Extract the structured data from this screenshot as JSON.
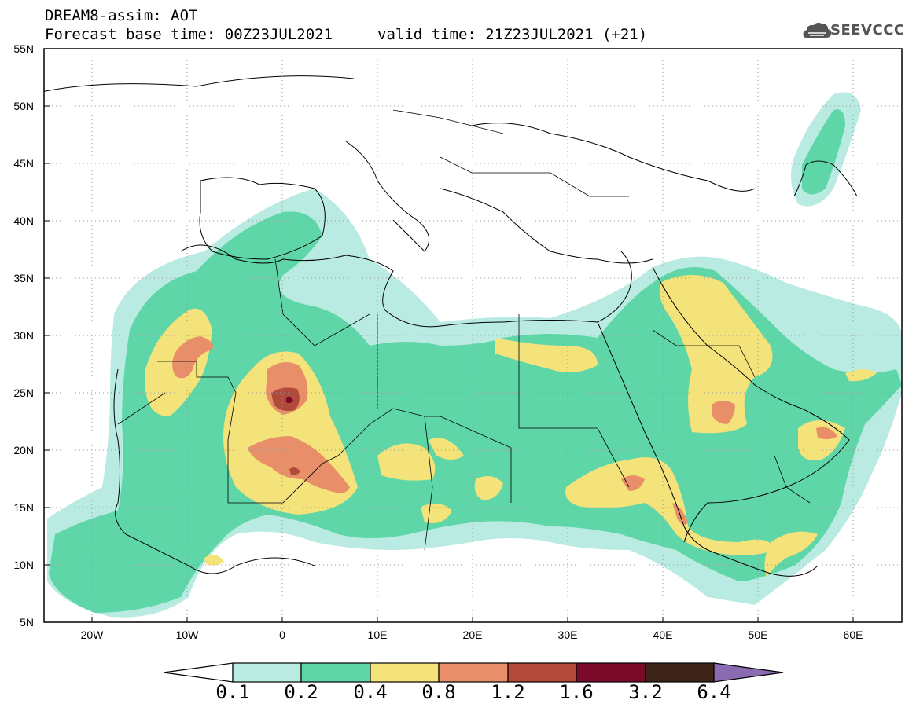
{
  "title": {
    "model": "DREAM8-assim: AOT",
    "base_time": "Forecast base time: 00Z23JUL2021",
    "valid_time": "valid time: 21Z23JUL2021 (+21)"
  },
  "logo": {
    "text": "SEEVCCC",
    "icon": "cloud-icon"
  },
  "map": {
    "lat_labels": [
      "55N",
      "50N",
      "45N",
      "40N",
      "35N",
      "30N",
      "25N",
      "20N",
      "15N",
      "10N",
      "5N"
    ],
    "lon_labels": [
      "20W",
      "10W",
      "0",
      "10E",
      "20E",
      "30E",
      "40E",
      "50E",
      "60E"
    ],
    "lon_range": [
      -25,
      65
    ],
    "lat_range": [
      5,
      55
    ]
  },
  "colorbar": {
    "labels": [
      "0.1",
      "0.2",
      "0.4",
      "0.8",
      "1.2",
      "1.6",
      "3.2",
      "6.4"
    ],
    "colors": [
      "#ffffff",
      "#b9ebe2",
      "#5fd6a8",
      "#f4e27a",
      "#e88f6a",
      "#b24a3c",
      "#7a0a2a",
      "#3c2418",
      "#8a6ab0"
    ]
  }
}
